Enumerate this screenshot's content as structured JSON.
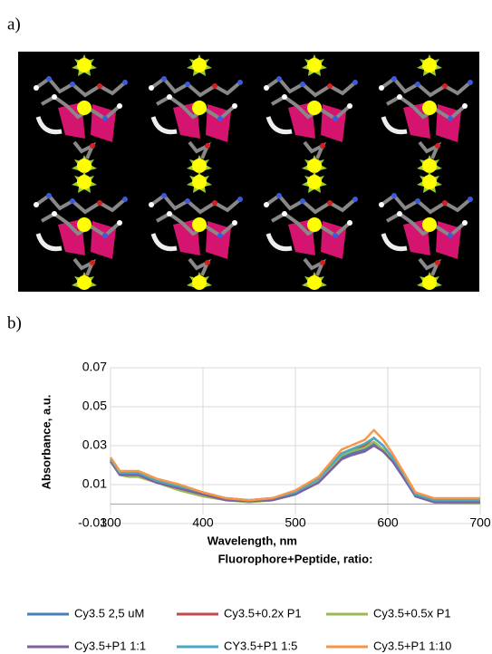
{
  "panel_labels": [
    "a)",
    "b)"
  ],
  "chart_data": {
    "type": "line",
    "x_label": "Wavelength, nm",
    "y_label": "Absorbance, a.u.",
    "legend_title": "Fluorophore+Peptide, ratio:",
    "x": [
      300,
      310,
      320,
      330,
      350,
      375,
      400,
      425,
      450,
      475,
      500,
      525,
      550,
      560,
      575,
      585,
      595,
      605,
      615,
      630,
      650,
      700
    ],
    "series": [
      {
        "name": "Cy3.5 2,5 uM",
        "color": "#4a7ebb",
        "values": [
          0.023,
          0.016,
          0.015,
          0.015,
          0.011,
          0.008,
          0.005,
          0.002,
          0.0015,
          0.002,
          0.005,
          0.012,
          0.024,
          0.026,
          0.028,
          0.031,
          0.027,
          0.022,
          0.016,
          0.004,
          0.001,
          0.001
        ]
      },
      {
        "name": "Cy3.5+0.2x P1",
        "color": "#be4b48",
        "values": [
          0.023,
          0.016,
          0.016,
          0.016,
          0.012,
          0.008,
          0.005,
          0.003,
          0.002,
          0.003,
          0.006,
          0.013,
          0.026,
          0.028,
          0.03,
          0.034,
          0.03,
          0.024,
          0.017,
          0.005,
          0.002,
          0.002
        ]
      },
      {
        "name": "Cy3.5+0.5x P1",
        "color": "#98b954",
        "values": [
          0.022,
          0.015,
          0.014,
          0.014,
          0.011,
          0.007,
          0.004,
          0.002,
          0.001,
          0.002,
          0.005,
          0.012,
          0.025,
          0.027,
          0.029,
          0.032,
          0.028,
          0.023,
          0.016,
          0.004,
          0.001,
          0.0005
        ]
      },
      {
        "name": "Cy3.5+P1 1:1",
        "color": "#7d60a0",
        "values": [
          0.022,
          0.015,
          0.015,
          0.015,
          0.011,
          0.008,
          0.005,
          0.002,
          0.0015,
          0.002,
          0.005,
          0.011,
          0.023,
          0.025,
          0.027,
          0.03,
          0.027,
          0.022,
          0.015,
          0.004,
          0.001,
          0.001
        ]
      },
      {
        "name": "CY3.5+P1 1:5",
        "color": "#46aac5",
        "values": [
          0.023,
          0.016,
          0.016,
          0.016,
          0.012,
          0.009,
          0.006,
          0.003,
          0.002,
          0.003,
          0.006,
          0.013,
          0.026,
          0.028,
          0.031,
          0.034,
          0.03,
          0.024,
          0.017,
          0.005,
          0.002,
          0.002
        ]
      },
      {
        "name": "Cy3.5+P1 1:10",
        "color": "#f79646",
        "values": [
          0.024,
          0.017,
          0.017,
          0.017,
          0.013,
          0.01,
          0.006,
          0.003,
          0.002,
          0.003,
          0.007,
          0.014,
          0.028,
          0.03,
          0.033,
          0.038,
          0.033,
          0.026,
          0.018,
          0.006,
          0.003,
          0.003
        ]
      }
    ],
    "xlim": [
      300,
      700
    ],
    "xticks": [
      300,
      400,
      500,
      600,
      700
    ],
    "ylim": [
      -0.01,
      0.07
    ],
    "yticks": [
      -0.01,
      0.01,
      0.03,
      0.05,
      0.07
    ],
    "grid": true
  }
}
